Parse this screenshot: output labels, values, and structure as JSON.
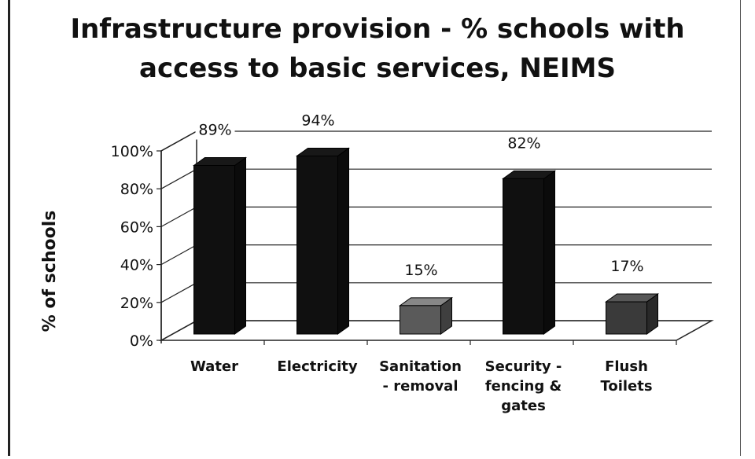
{
  "chart_data": {
    "type": "bar",
    "title_line1": "Infrastructure provision - % schools with",
    "title_line2": "access to basic services, NEIMS",
    "ylabel": "% of schools",
    "ylim": [
      0,
      100
    ],
    "y_ticks": [
      "0%",
      "20%",
      "40%",
      "60%",
      "80%",
      "100%"
    ],
    "categories": [
      [
        "Water"
      ],
      [
        "Electricity"
      ],
      [
        "Sanitation",
        "- removal"
      ],
      [
        "Security -",
        "fencing &",
        "gates"
      ],
      [
        "Flush",
        "Toilets"
      ]
    ],
    "values": [
      89,
      94,
      15,
      82,
      17
    ],
    "value_labels": [
      "89%",
      "94%",
      "15%",
      "82%",
      "17%"
    ],
    "bar_colors": [
      "#101010",
      "#101010",
      "#5a5a5a",
      "#101010",
      "#3a3a3a"
    ]
  }
}
